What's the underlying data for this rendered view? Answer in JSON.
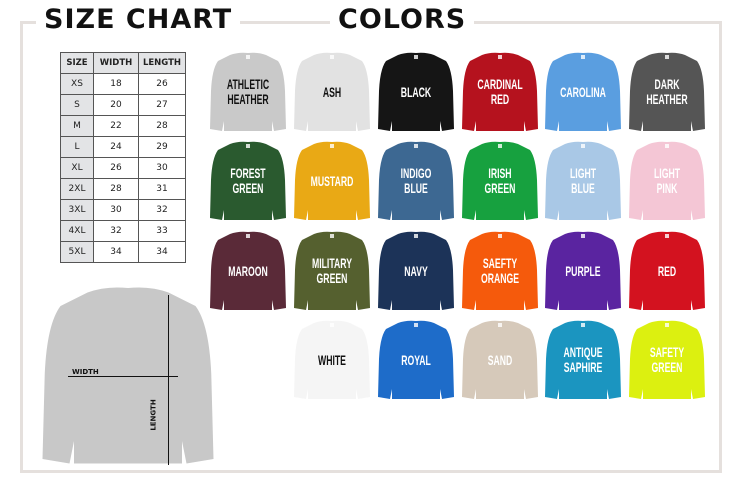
{
  "size_chart": {
    "title": "SIZE CHART",
    "headers": [
      "SIZE",
      "WIDTH",
      "LENGTH"
    ],
    "rows": [
      [
        "XS",
        "18",
        "26"
      ],
      [
        "S",
        "20",
        "27"
      ],
      [
        "M",
        "22",
        "28"
      ],
      [
        "L",
        "24",
        "29"
      ],
      [
        "XL",
        "26",
        "30"
      ],
      [
        "2XL",
        "28",
        "31"
      ],
      [
        "3XL",
        "30",
        "32"
      ],
      [
        "4XL",
        "32",
        "33"
      ],
      [
        "5XL",
        "34",
        "34"
      ]
    ],
    "width_label": "WIDTH",
    "length_label": "LENGTH",
    "diagram_color": "#c8c8c8"
  },
  "colors": {
    "title": "COLORS",
    "items": [
      {
        "name": "ATHLETIC\nHEATHER",
        "color": "#c9c9c9",
        "text": "#111"
      },
      {
        "name": "ASH",
        "color": "#e2e2e2",
        "text": "#111"
      },
      {
        "name": "BLACK",
        "color": "#151515",
        "text": "#fff"
      },
      {
        "name": "CARDINAL\nRED",
        "color": "#b5121e",
        "text": "#fff"
      },
      {
        "name": "CAROLINA",
        "color": "#5a9ee0",
        "text": "#fff"
      },
      {
        "name": "DARK\nHEATHER",
        "color": "#555555",
        "text": "#fff"
      },
      {
        "name": "FOREST\nGREEN",
        "color": "#2a5a2f",
        "text": "#fff"
      },
      {
        "name": "MUSTARD",
        "color": "#e9a915",
        "text": "#fff"
      },
      {
        "name": "INDIGO\nBLUE",
        "color": "#3d6892",
        "text": "#fff"
      },
      {
        "name": "IRISH\nGREEN",
        "color": "#17a13f",
        "text": "#fff"
      },
      {
        "name": "LIGHT\nBLUE",
        "color": "#a9c8e6",
        "text": "#fff"
      },
      {
        "name": "LIGHT\nPINK",
        "color": "#f4c6d5",
        "text": "#fff"
      },
      {
        "name": "MAROON",
        "color": "#5a2a38",
        "text": "#fff"
      },
      {
        "name": "MILITARY\nGREEN",
        "color": "#55602f",
        "text": "#fff"
      },
      {
        "name": "NAVY",
        "color": "#1c3358",
        "text": "#fff"
      },
      {
        "name": "SAEFTY\nORANGE",
        "color": "#f55a0c",
        "text": "#fff"
      },
      {
        "name": "PURPLE",
        "color": "#5a24a0",
        "text": "#fff"
      },
      {
        "name": "RED",
        "color": "#d3121f",
        "text": "#fff"
      },
      {
        "name": "WHITE",
        "color": "#f5f5f5",
        "text": "#111"
      },
      {
        "name": "ROYAL",
        "color": "#1e6cc9",
        "text": "#fff"
      },
      {
        "name": "SAND",
        "color": "#d6c9ba",
        "text": "#fff"
      },
      {
        "name": "ANTIQUE\nSAPHIRE",
        "color": "#1b95c0",
        "text": "#fff"
      },
      {
        "name": "SAFETY\nGREEN",
        "color": "#dcf010",
        "text": "#fff"
      }
    ]
  }
}
